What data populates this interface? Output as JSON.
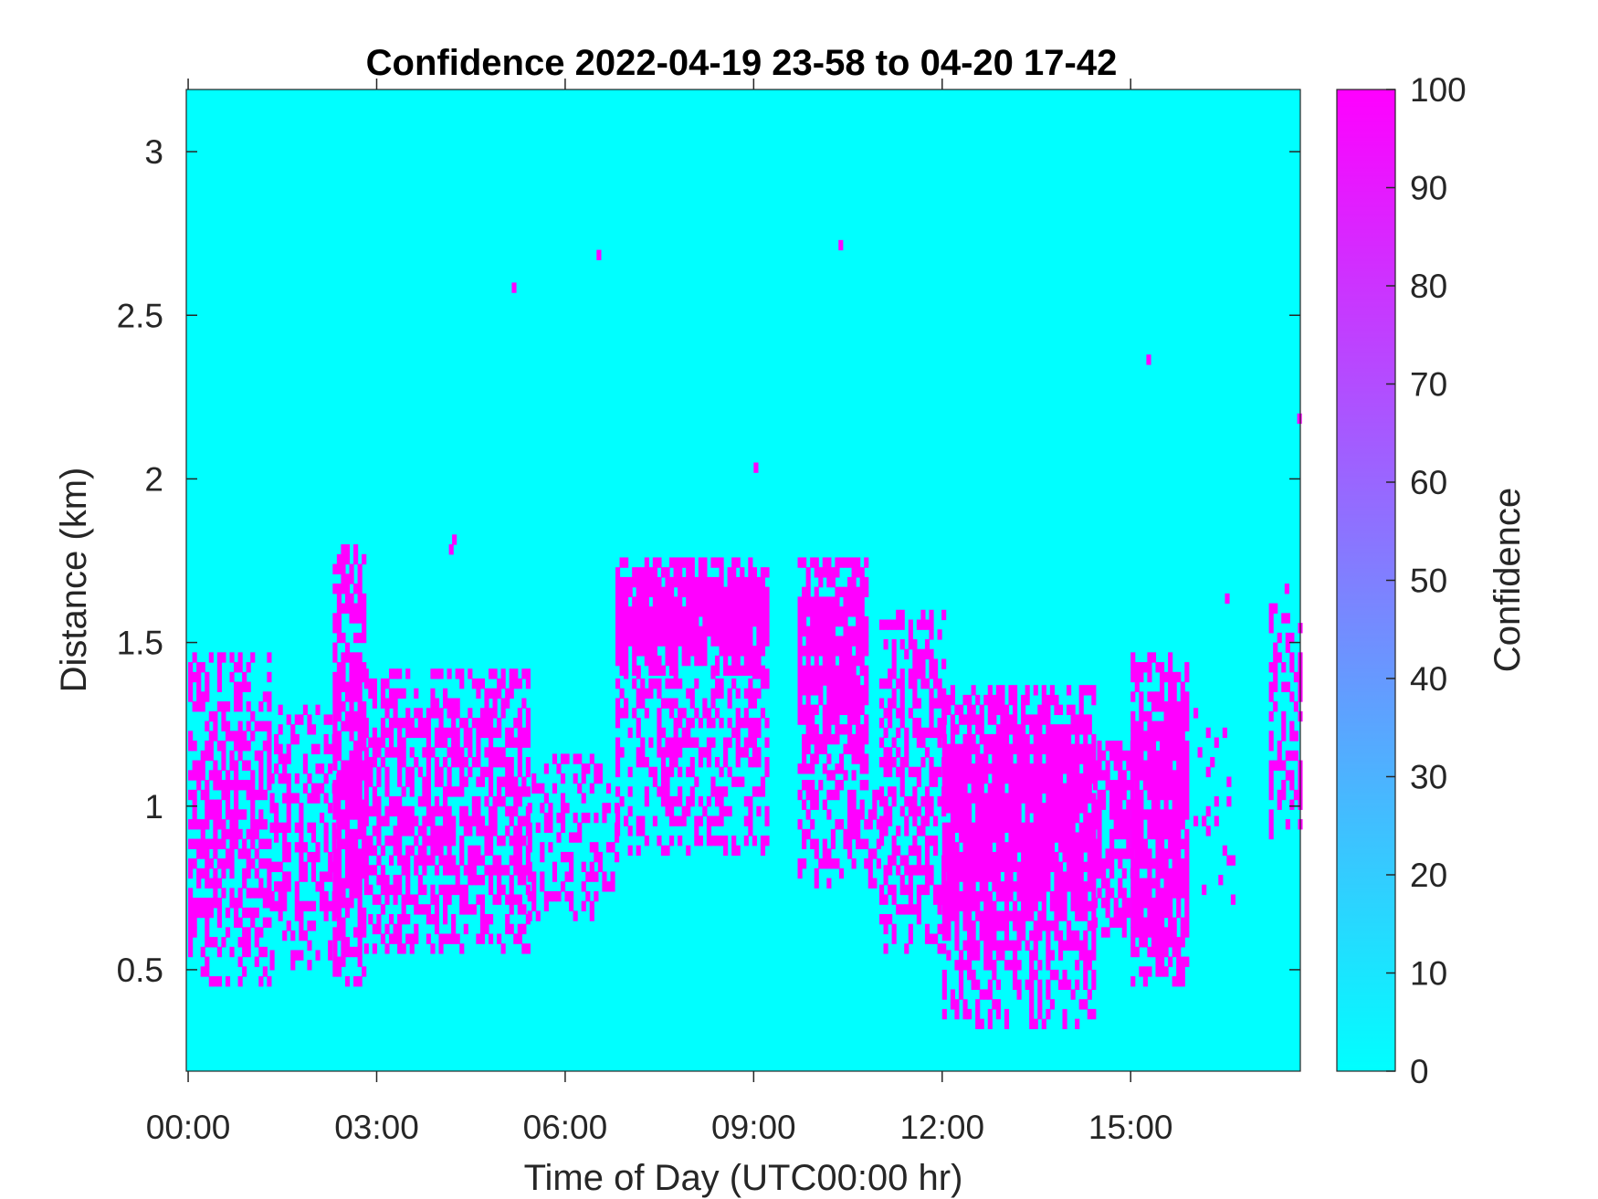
{
  "chart_data": {
    "type": "heatmap",
    "title": "Confidence 2022-04-19 23-58 to 04-20 17-42",
    "xlabel": "Time of Day (UTC00:00 hr)",
    "ylabel": "Distance (km)",
    "xlim_hours": [
      -0.03,
      17.7
    ],
    "ylim": [
      0.19,
      3.19
    ],
    "x_ticks": [
      {
        "value": 0,
        "label": "00:00"
      },
      {
        "value": 3,
        "label": "03:00"
      },
      {
        "value": 6,
        "label": "06:00"
      },
      {
        "value": 9,
        "label": "09:00"
      },
      {
        "value": 12,
        "label": "12:00"
      },
      {
        "value": 15,
        "label": "15:00"
      }
    ],
    "y_ticks": [
      {
        "value": 0.5,
        "label": "0.5"
      },
      {
        "value": 1,
        "label": "1"
      },
      {
        "value": 1.5,
        "label": "1.5"
      },
      {
        "value": 2,
        "label": "2"
      },
      {
        "value": 2.5,
        "label": "2.5"
      },
      {
        "value": 3,
        "label": "3"
      }
    ],
    "colorbar": {
      "label": "Confidence",
      "range": [
        0,
        100
      ],
      "ticks": [
        "0",
        "10",
        "20",
        "30",
        "40",
        "50",
        "60",
        "70",
        "80",
        "90",
        "100"
      ],
      "colormap": "cool",
      "low_color": "#00FFFF",
      "high_color": "#FF00FF"
    },
    "background_value": 0,
    "detection_value": 100,
    "detection_bands": [
      {
        "t_start": 0.0,
        "t_end": 1.3,
        "d_low": 0.45,
        "d_high": 1.45,
        "density": 0.55
      },
      {
        "t_start": 1.3,
        "t_end": 2.4,
        "d_low": 0.5,
        "d_high": 1.3,
        "density": 0.38
      },
      {
        "t_start": 2.3,
        "t_end": 2.8,
        "d_low": 0.45,
        "d_high": 1.8,
        "density": 0.8
      },
      {
        "t_start": 2.8,
        "t_end": 5.4,
        "d_low": 0.55,
        "d_high": 1.4,
        "density": 0.6
      },
      {
        "t_start": 5.4,
        "t_end": 6.8,
        "d_low": 0.65,
        "d_high": 1.15,
        "density": 0.3
      },
      {
        "t_start": 6.8,
        "t_end": 9.2,
        "d_low": 1.4,
        "d_high": 1.75,
        "density": 0.95
      },
      {
        "t_start": 6.8,
        "t_end": 9.2,
        "d_low": 0.85,
        "d_high": 1.4,
        "density": 0.45
      },
      {
        "t_start": 9.7,
        "t_end": 10.8,
        "d_low": 1.1,
        "d_high": 1.75,
        "density": 0.88
      },
      {
        "t_start": 9.7,
        "t_end": 11.0,
        "d_low": 0.75,
        "d_high": 1.1,
        "density": 0.45
      },
      {
        "t_start": 11.0,
        "t_end": 12.0,
        "d_low": 0.55,
        "d_high": 1.6,
        "density": 0.5
      },
      {
        "t_start": 12.0,
        "t_end": 14.4,
        "d_low": 0.5,
        "d_high": 1.35,
        "density": 0.9
      },
      {
        "t_start": 12.0,
        "t_end": 14.4,
        "d_low": 0.32,
        "d_high": 0.5,
        "density": 0.35
      },
      {
        "t_start": 14.4,
        "t_end": 15.0,
        "d_low": 0.6,
        "d_high": 1.2,
        "density": 0.7
      },
      {
        "t_start": 15.0,
        "t_end": 15.9,
        "d_low": 0.45,
        "d_high": 1.45,
        "density": 0.88
      },
      {
        "t_start": 16.0,
        "t_end": 16.6,
        "d_low": 0.7,
        "d_high": 1.3,
        "density": 0.1
      },
      {
        "t_start": 17.2,
        "t_end": 17.7,
        "d_low": 0.9,
        "d_high": 1.6,
        "density": 0.5
      }
    ],
    "isolated_points": [
      {
        "t": 5.15,
        "d": 2.57
      },
      {
        "t": 6.5,
        "d": 2.67
      },
      {
        "t": 10.35,
        "d": 2.7
      },
      {
        "t": 9.0,
        "d": 2.02
      },
      {
        "t": 15.25,
        "d": 2.35
      },
      {
        "t": 17.65,
        "d": 2.17
      },
      {
        "t": 4.2,
        "d": 1.8
      },
      {
        "t": 4.15,
        "d": 1.77
      },
      {
        "t": 16.5,
        "d": 1.62
      },
      {
        "t": 17.45,
        "d": 1.65
      }
    ]
  }
}
